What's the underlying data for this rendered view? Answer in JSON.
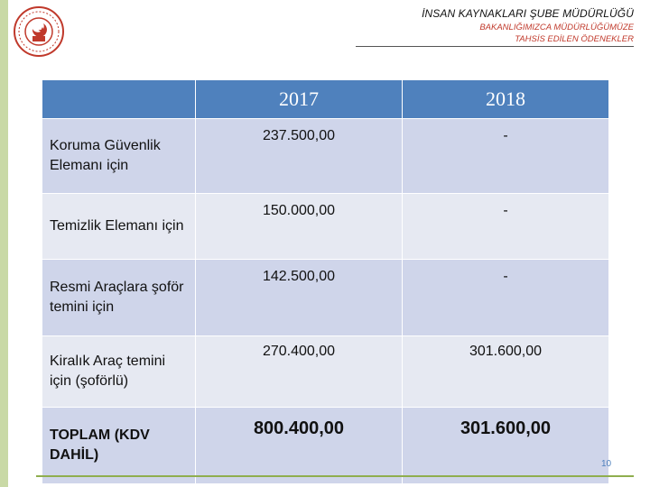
{
  "header": {
    "title": "İNSAN KAYNAKLARI ŞUBE MÜDÜRLÜĞÜ",
    "subtitle_line1": "BAKANLIĞIMIZCA MÜDÜRLÜĞÜMÜZE",
    "subtitle_line2": "TAHSİS EDİLEN ÖDENEKLER"
  },
  "table": {
    "columns": [
      "",
      "2017",
      "2018"
    ],
    "rows": [
      {
        "label": "Koruma Güvenlik Elemanı için",
        "v2017": "237.500,00",
        "v2018": "-"
      },
      {
        "label": "Temizlik Elemanı için",
        "v2017": "150.000,00",
        "v2018": "-"
      },
      {
        "label": "Resmi Araçlara şoför temini için",
        "v2017": "142.500,00",
        "v2018": "-"
      },
      {
        "label": "Kiralık Araç temini için (şoförlü)",
        "v2017": "270.400,00",
        "v2018": "301.600,00"
      },
      {
        "label": "TOPLAM (KDV DAHİL)",
        "v2017": "800.400,00",
        "v2018": "301.600,00"
      }
    ]
  },
  "footer": {
    "page_number": "10"
  },
  "colors": {
    "header_blue": "#4f81bd",
    "accent_red": "#c0392b",
    "accent_green": "#8fae4e"
  }
}
